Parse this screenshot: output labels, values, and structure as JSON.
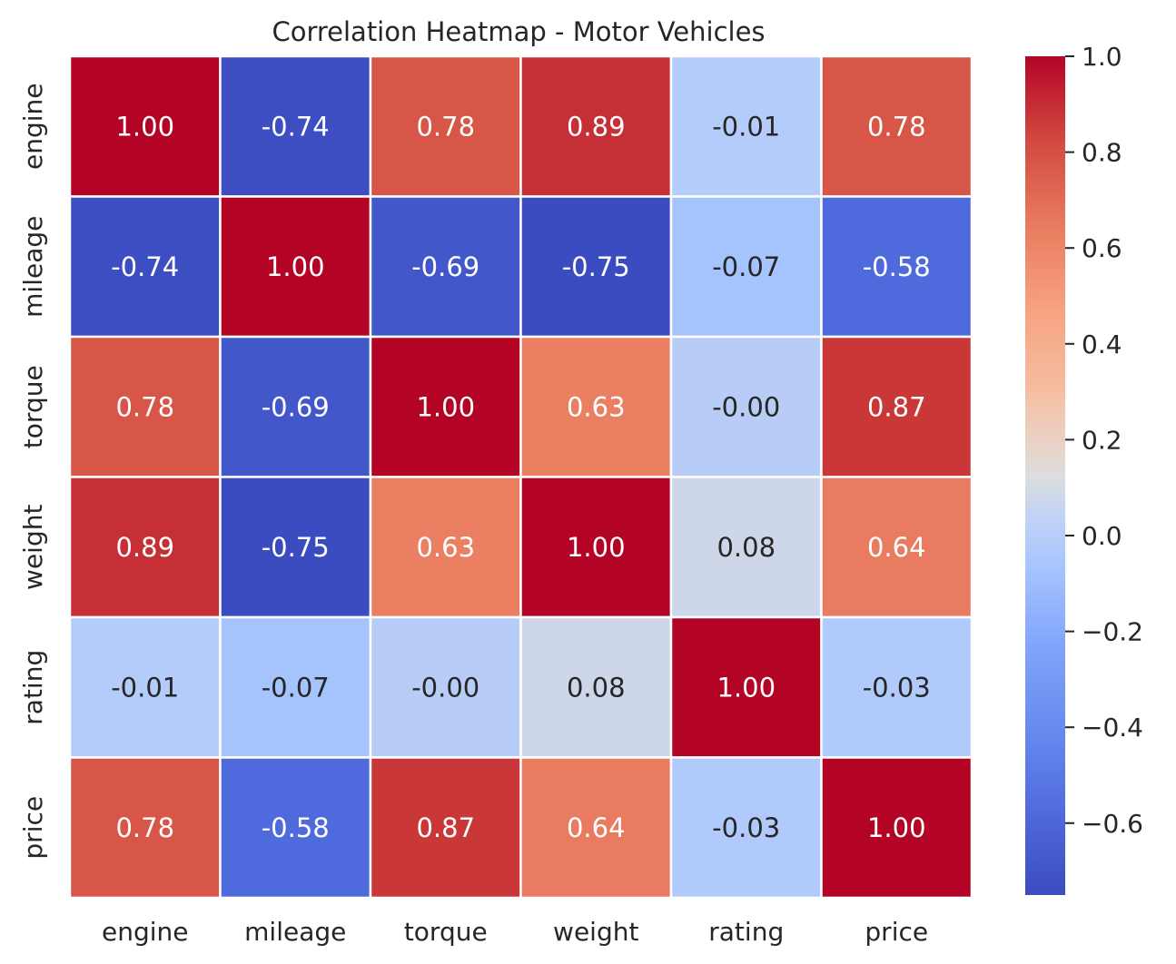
{
  "chart_data": {
    "type": "heatmap",
    "title": "Correlation Heatmap - Motor Vehicles",
    "x_labels": [
      "engine",
      "mileage",
      "torque",
      "weight",
      "rating",
      "price"
    ],
    "y_labels": [
      "engine",
      "mileage",
      "torque",
      "weight",
      "rating",
      "price"
    ],
    "values": [
      [
        1.0,
        -0.74,
        0.78,
        0.89,
        -0.01,
        0.78
      ],
      [
        -0.74,
        1.0,
        -0.69,
        -0.75,
        -0.07,
        -0.58
      ],
      [
        0.78,
        -0.69,
        1.0,
        0.63,
        -0.0,
        0.87
      ],
      [
        0.89,
        -0.75,
        0.63,
        1.0,
        0.08,
        0.64
      ],
      [
        -0.01,
        -0.07,
        -0.0,
        0.08,
        1.0,
        -0.03
      ],
      [
        0.78,
        -0.58,
        0.87,
        0.64,
        -0.03,
        1.0
      ]
    ],
    "value_format": "2 decimals",
    "colormap": "coolwarm",
    "color_range": [
      -0.75,
      1.0
    ],
    "colorbar_ticks": [
      1.0,
      0.8,
      0.6,
      0.4,
      0.2,
      0.0,
      -0.2,
      -0.4,
      -0.6
    ],
    "colorbar_tick_labels": [
      "1.0",
      "0.8",
      "0.6",
      "0.4",
      "0.2",
      "0.0",
      "−0.2",
      "−0.4",
      "−0.6"
    ],
    "legend": "colorbar-right",
    "grid": false,
    "cell_border_color": "#ffffff",
    "text_color_light": "#ffffff",
    "text_color_dark": "#262626"
  }
}
